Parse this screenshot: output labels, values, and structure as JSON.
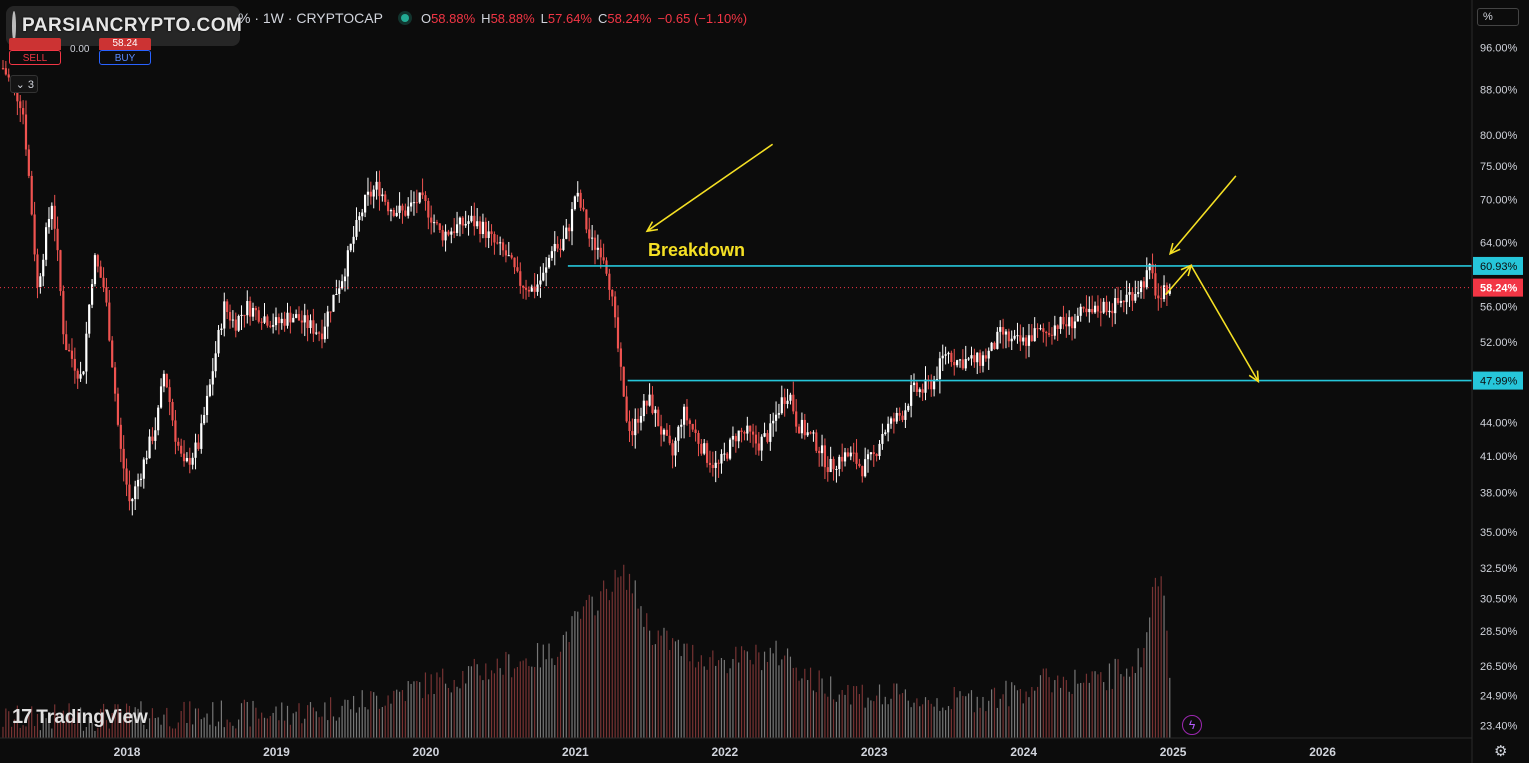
{
  "header": {
    "symbol_line": "% · 1W · CRYPTOCAP",
    "open_label": "O",
    "open": "58.88%",
    "high_label": "H",
    "high": "58.88%",
    "low_label": "L",
    "low": "57.64%",
    "close_label": "C",
    "close": "58.24%",
    "change": "−0.65 (−1.10%)"
  },
  "watermark": {
    "brand": "PARSIANCRYPTO.COM"
  },
  "trade_panel": {
    "sell_label": "SELL",
    "buy_label": "BUY",
    "spread": "0.00",
    "buy_price": "58.24",
    "lots": "3"
  },
  "branding": {
    "tradingview": "TradingView"
  },
  "scale": {
    "unit_badge": "%"
  },
  "colors": {
    "up": "#ffffff",
    "down": "#ef5350",
    "level_line": "#26c6da",
    "annotation": "#f5e024",
    "last_price": "#f23645",
    "background": "#0c0c0c"
  },
  "icons": {
    "settings": "gear-icon",
    "flash": "lightning-icon"
  },
  "chart_data": {
    "type": "candlestick",
    "title": "",
    "interval": "1W",
    "price_scale": "log",
    "y_ticks": [
      "96.00%",
      "88.00%",
      "80.00%",
      "75.00%",
      "70.00%",
      "64.00%",
      "56.00%",
      "52.00%",
      "44.00%",
      "41.00%",
      "38.00%",
      "35.00%",
      "32.50%",
      "30.50%",
      "28.50%",
      "26.50%",
      "24.90%",
      "23.40%"
    ],
    "y_tick_values": [
      96,
      88,
      80,
      75,
      70,
      64,
      56,
      52,
      44,
      41,
      38,
      35,
      32.5,
      30.5,
      28.5,
      26.5,
      24.9,
      23.4
    ],
    "x_ticks": [
      "2018",
      "2019",
      "2020",
      "2021",
      "2022",
      "2023",
      "2024",
      "2025",
      "2026"
    ],
    "x_tick_values": [
      2018,
      2019,
      2020,
      2021,
      2022,
      2023,
      2024,
      2025,
      2026
    ],
    "x_range": [
      2017.15,
      2027.0
    ],
    "y_range": [
      22.8,
      100
    ],
    "levels": [
      {
        "value": 60.93,
        "label": "60.93%",
        "x_start": 2020.95
      },
      {
        "value": 47.99,
        "label": "47.99%",
        "x_start": 2021.35
      }
    ],
    "last_price": {
      "value": 58.24,
      "label": "58.24%"
    },
    "annotation_text": "Breakdown",
    "price_path": [
      [
        2017.17,
        92
      ],
      [
        2017.3,
        85
      ],
      [
        2017.4,
        58
      ],
      [
        2017.5,
        70
      ],
      [
        2017.58,
        52
      ],
      [
        2017.7,
        48
      ],
      [
        2017.78,
        62
      ],
      [
        2017.85,
        58
      ],
      [
        2017.95,
        42
      ],
      [
        2018.02,
        37
      ],
      [
        2018.1,
        40
      ],
      [
        2018.2,
        44
      ],
      [
        2018.25,
        49
      ],
      [
        2018.32,
        43
      ],
      [
        2018.38,
        40
      ],
      [
        2018.48,
        42
      ],
      [
        2018.55,
        47
      ],
      [
        2018.65,
        56
      ],
      [
        2018.72,
        54
      ],
      [
        2018.8,
        56
      ],
      [
        2018.9,
        55
      ],
      [
        2019.0,
        54
      ],
      [
        2019.1,
        55
      ],
      [
        2019.2,
        54
      ],
      [
        2019.3,
        53
      ],
      [
        2019.38,
        57
      ],
      [
        2019.45,
        60
      ],
      [
        2019.52,
        65
      ],
      [
        2019.6,
        70
      ],
      [
        2019.68,
        72
      ],
      [
        2019.75,
        69
      ],
      [
        2019.85,
        68
      ],
      [
        2019.95,
        70
      ],
      [
        2020.0,
        69
      ],
      [
        2020.1,
        65
      ],
      [
        2020.2,
        66
      ],
      [
        2020.3,
        67
      ],
      [
        2020.38,
        66
      ],
      [
        2020.45,
        64
      ],
      [
        2020.55,
        62
      ],
      [
        2020.62,
        59
      ],
      [
        2020.72,
        58
      ],
      [
        2020.8,
        60
      ],
      [
        2020.85,
        64
      ],
      [
        2020.9,
        63
      ],
      [
        2020.97,
        67
      ],
      [
        2021.0,
        71
      ],
      [
        2021.05,
        68
      ],
      [
        2021.1,
        64
      ],
      [
        2021.18,
        63
      ],
      [
        2021.22,
        60
      ],
      [
        2021.28,
        52
      ],
      [
        2021.33,
        45
      ],
      [
        2021.38,
        43
      ],
      [
        2021.43,
        45
      ],
      [
        2021.5,
        46
      ],
      [
        2021.58,
        43
      ],
      [
        2021.65,
        41
      ],
      [
        2021.72,
        45
      ],
      [
        2021.8,
        43
      ],
      [
        2021.88,
        41
      ],
      [
        2021.95,
        40
      ],
      [
        2022.0,
        41
      ],
      [
        2022.08,
        43
      ],
      [
        2022.15,
        43
      ],
      [
        2022.22,
        42
      ],
      [
        2022.3,
        43
      ],
      [
        2022.38,
        46
      ],
      [
        2022.43,
        47
      ],
      [
        2022.48,
        44
      ],
      [
        2022.55,
        43
      ],
      [
        2022.62,
        42
      ],
      [
        2022.7,
        40
      ],
      [
        2022.78,
        41
      ],
      [
        2022.85,
        41
      ],
      [
        2022.92,
        40
      ],
      [
        2023.0,
        41
      ],
      [
        2023.05,
        43
      ],
      [
        2023.12,
        44
      ],
      [
        2023.2,
        45
      ],
      [
        2023.25,
        47
      ],
      [
        2023.32,
        47
      ],
      [
        2023.4,
        48
      ],
      [
        2023.48,
        51
      ],
      [
        2023.55,
        50
      ],
      [
        2023.62,
        50
      ],
      [
        2023.7,
        50
      ],
      [
        2023.78,
        51
      ],
      [
        2023.85,
        53
      ],
      [
        2023.92,
        52
      ],
      [
        2024.0,
        52
      ],
      [
        2024.08,
        53
      ],
      [
        2024.15,
        53
      ],
      [
        2024.22,
        54
      ],
      [
        2024.3,
        54
      ],
      [
        2024.38,
        55
      ],
      [
        2024.45,
        55
      ],
      [
        2024.52,
        56
      ],
      [
        2024.6,
        56
      ],
      [
        2024.68,
        57
      ],
      [
        2024.75,
        58
      ],
      [
        2024.8,
        59
      ],
      [
        2024.85,
        60.5
      ],
      [
        2024.88,
        58
      ],
      [
        2024.92,
        56
      ],
      [
        2024.95,
        58.5
      ],
      [
        2024.98,
        58.24
      ]
    ],
    "volume_path": [
      [
        2017.17,
        23.7
      ],
      [
        2018.0,
        23.9
      ],
      [
        2019.0,
        24.0
      ],
      [
        2019.3,
        24.2
      ],
      [
        2019.6,
        24.6
      ],
      [
        2020.0,
        25.5
      ],
      [
        2020.5,
        26.5
      ],
      [
        2020.85,
        27.2
      ],
      [
        2021.0,
        29.0
      ],
      [
        2021.25,
        31.5
      ],
      [
        2021.35,
        32.0
      ],
      [
        2021.5,
        28.5
      ],
      [
        2021.75,
        27.2
      ],
      [
        2022.0,
        26.8
      ],
      [
        2022.4,
        27.2
      ],
      [
        2022.6,
        25.6
      ],
      [
        2023.0,
        24.9
      ],
      [
        2023.5,
        24.6
      ],
      [
        2023.9,
        25.0
      ],
      [
        2024.2,
        25.8
      ],
      [
        2024.5,
        25.6
      ],
      [
        2024.8,
        27.0
      ],
      [
        2024.88,
        32.0
      ],
      [
        2024.95,
        30.5
      ],
      [
        2024.99,
        24.9
      ]
    ]
  }
}
